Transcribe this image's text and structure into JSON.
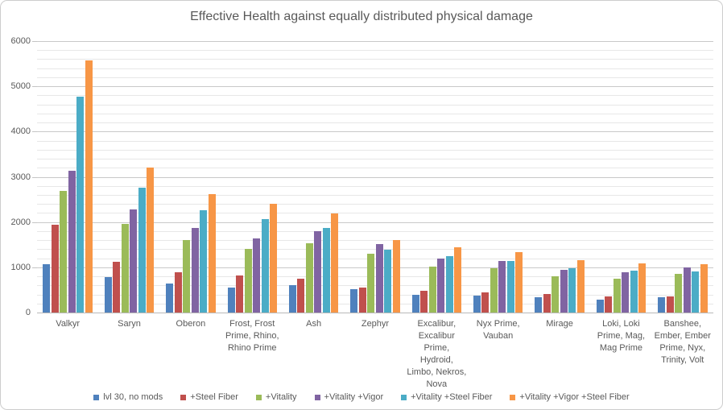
{
  "chart_data": {
    "type": "bar",
    "title": "Effective Health against equally distributed physical damage",
    "xlabel": "",
    "ylabel": "",
    "ylim": [
      0,
      6000
    ],
    "yticks": [
      0,
      1000,
      2000,
      3000,
      4000,
      5000,
      6000
    ],
    "minor_gridline_step": 200,
    "major_gridline_step": 1000,
    "grid": "horizontal, major and minor",
    "legend_position": "bottom",
    "categories": [
      "Valkyr",
      "Saryn",
      "Oberon",
      "Frost, Frost Prime, Rhino, Rhino Prime",
      "Ash",
      "Zephyr",
      "Excalibur, Excalibur Prime, Hydroid, Limbo, Nekros, Nova",
      "Nyx Prime, Vauban",
      "Mirage",
      "Loki, Loki Prime, Mag, Mag Prime",
      "Banshee, Ember, Ember Prime, Nyx, Trinity, Volt"
    ],
    "series": [
      {
        "name": "lvl 30, no mods",
        "color": "#4F81BD",
        "values": [
          1070,
          780,
          640,
          550,
          605,
          515,
          390,
          375,
          340,
          285,
          340
        ]
      },
      {
        "name": "+Steel Fiber",
        "color": "#C0504D",
        "values": [
          1940,
          1115,
          890,
          820,
          750,
          550,
          480,
          445,
          410,
          355,
          355
        ]
      },
      {
        "name": "+Vitality",
        "color": "#9BBB59",
        "values": [
          2690,
          1960,
          1600,
          1405,
          1530,
          1300,
          1015,
          980,
          800,
          750,
          855
        ]
      },
      {
        "name": "+Vitality +Vigor",
        "color": "#8064A2",
        "values": [
          3135,
          2280,
          1870,
          1640,
          1800,
          1515,
          1195,
          1140,
          945,
          890,
          995
        ]
      },
      {
        "name": "+Vitality +Steel Fiber",
        "color": "#4BACC6",
        "values": [
          4770,
          2760,
          2260,
          2065,
          1870,
          1390,
          1245,
          1140,
          980,
          925,
          910
        ]
      },
      {
        "name": "+Vitality +Vigor +Steel Fiber",
        "color": "#F79646",
        "values": [
          5565,
          3205,
          2615,
          2405,
          2190,
          1600,
          1440,
          1335,
          1155,
          1085,
          1070
        ]
      }
    ]
  }
}
